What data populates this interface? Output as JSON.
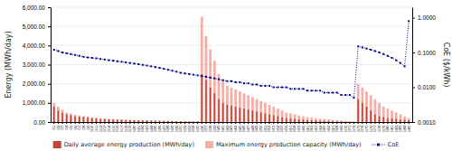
{
  "chart_data": {
    "type": "bar",
    "categories": [
      "G1",
      "G2",
      "G3",
      "G4",
      "G5",
      "G6",
      "G7",
      "G8",
      "G9",
      "G10",
      "G11",
      "G12",
      "G13",
      "G14",
      "G15",
      "G16",
      "G17",
      "G18",
      "G19",
      "G20",
      "G21",
      "G22",
      "G23",
      "G24",
      "G25",
      "G26",
      "G27",
      "G28",
      "G29",
      "G30",
      "G31",
      "G32",
      "G33",
      "G34",
      "G35",
      "G36",
      "G37",
      "G38",
      "G39",
      "G40",
      "G41",
      "G42",
      "G43",
      "G44",
      "G45",
      "G46",
      "G47",
      "G48",
      "G49",
      "G50",
      "G51",
      "G52",
      "G53",
      "G54",
      "G55",
      "G56",
      "G57",
      "G58",
      "G59",
      "G60",
      "G61",
      "G62",
      "G63",
      "G64",
      "G65",
      "G66",
      "G67",
      "G68",
      "G69",
      "G70",
      "G71",
      "G72",
      "G73",
      "G74",
      "G75",
      "G76",
      "G77",
      "G78",
      "G79",
      "G80",
      "G81",
      "G82",
      "G83",
      "G84",
      "G85"
    ],
    "series": [
      {
        "name": "Daily average energy production (MWh/day)",
        "type": "bar",
        "color": "#c0392b",
        "values": [
          800,
          600,
          500,
          400,
          350,
          300,
          280,
          250,
          230,
          200,
          180,
          160,
          150,
          140,
          130,
          120,
          110,
          100,
          95,
          90,
          85,
          80,
          75,
          70,
          65,
          60,
          55,
          50,
          45,
          40,
          38,
          36,
          34,
          32,
          30,
          2500,
          2200,
          1800,
          1500,
          1200,
          1000,
          900,
          850,
          800,
          750,
          700,
          650,
          600,
          550,
          500,
          450,
          400,
          350,
          300,
          250,
          200,
          180,
          160,
          140,
          120,
          100,
          90,
          80,
          70,
          60,
          50,
          40,
          30,
          20,
          15,
          10,
          8,
          1200,
          1000,
          800,
          600,
          400,
          300,
          250,
          200,
          180,
          160,
          140,
          120,
          100
        ]
      },
      {
        "name": "Maximum energy production capacity (MWh/day)",
        "type": "bar",
        "color": "#f1948a",
        "values": [
          1000,
          800,
          650,
          500,
          450,
          380,
          350,
          320,
          300,
          260,
          230,
          200,
          190,
          170,
          160,
          150,
          140,
          130,
          120,
          110,
          105,
          100,
          95,
          90,
          80,
          75,
          70,
          65,
          55,
          50,
          48,
          46,
          43,
          40,
          38,
          5500,
          4500,
          3800,
          3200,
          2500,
          2200,
          1900,
          1800,
          1700,
          1600,
          1500,
          1400,
          1300,
          1200,
          1100,
          1000,
          900,
          800,
          700,
          600,
          500,
          450,
          400,
          350,
          300,
          250,
          230,
          200,
          180,
          160,
          140,
          120,
          100,
          80,
          60,
          45,
          35,
          2000,
          1800,
          1600,
          1400,
          1200,
          1000,
          800,
          700,
          600,
          500,
          400,
          300,
          200
        ]
      },
      {
        "name": "CoE",
        "type": "line",
        "axis": "y2",
        "color": "#00008b",
        "marker": "square",
        "line_style": "dotted",
        "values": [
          0.12,
          0.11,
          0.1,
          0.095,
          0.09,
          0.085,
          0.08,
          0.075,
          0.072,
          0.07,
          0.068,
          0.065,
          0.063,
          0.06,
          0.058,
          0.056,
          0.054,
          0.052,
          0.05,
          0.048,
          0.046,
          0.044,
          0.042,
          0.04,
          0.038,
          0.036,
          0.034,
          0.032,
          0.03,
          0.028,
          0.026,
          0.025,
          0.024,
          0.023,
          0.022,
          0.021,
          0.02,
          0.019,
          0.018,
          0.017,
          0.016,
          0.015,
          0.015,
          0.014,
          0.014,
          0.013,
          0.013,
          0.012,
          0.012,
          0.011,
          0.011,
          0.011,
          0.01,
          0.01,
          0.01,
          0.01,
          0.009,
          0.009,
          0.009,
          0.009,
          0.008,
          0.008,
          0.008,
          0.008,
          0.007,
          0.007,
          0.007,
          0.007,
          0.006,
          0.006,
          0.006,
          0.005,
          0.15,
          0.14,
          0.13,
          0.12,
          0.11,
          0.1,
          0.09,
          0.08,
          0.07,
          0.06,
          0.05,
          0.04,
          0.8
        ]
      }
    ],
    "ylabel": "Energy (MWh/day)",
    "y2label": "CoE ($/kWh)",
    "ylim": [
      0,
      6000
    ],
    "yticks": [
      {
        "value": 0,
        "label": "0.00"
      },
      {
        "value": 1000,
        "label": "1,000.00"
      },
      {
        "value": 2000,
        "label": "2,000.00"
      },
      {
        "value": 3000,
        "label": "3,000.00"
      },
      {
        "value": 4000,
        "label": "4,000.00"
      },
      {
        "value": 5000,
        "label": "5,000.00"
      },
      {
        "value": 6000,
        "label": "6,000.00"
      }
    ],
    "y2lim": [
      0.001,
      2.0
    ],
    "y2ticks": [
      {
        "value": 0.001,
        "label": "0.0010"
      },
      {
        "value": 0.01,
        "label": "0.0100"
      },
      {
        "value": 0.1,
        "label": "0.1000"
      },
      {
        "value": 1.0,
        "label": "1.0000"
      }
    ],
    "log": "y2",
    "grid": true,
    "legend": "bottom"
  }
}
